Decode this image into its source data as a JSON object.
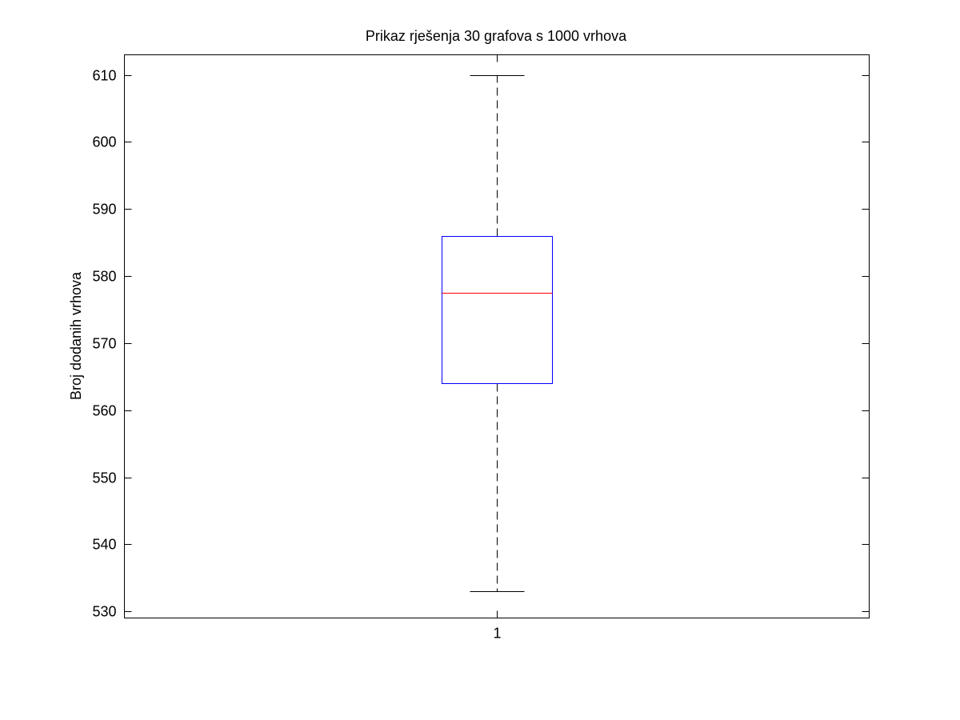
{
  "chart_data": {
    "type": "box",
    "title": "Prikaz rješenja 30 grafova s 1000 vrhova",
    "xlabel": "",
    "ylabel": "Broj dodanih vrhova",
    "ylim": [
      529,
      613
    ],
    "yticks": [
      530,
      540,
      550,
      560,
      570,
      580,
      590,
      600,
      610
    ],
    "categories": [
      "1"
    ],
    "boxes": [
      {
        "category": "1",
        "whisker_low": 533,
        "q1": 564,
        "median": 577.5,
        "q3": 586,
        "whisker_high": 610
      }
    ],
    "grid": false,
    "colors": {
      "box": "#0000ff",
      "median": "#ff0000",
      "whisker": "#000000",
      "axes": "#000000"
    }
  }
}
